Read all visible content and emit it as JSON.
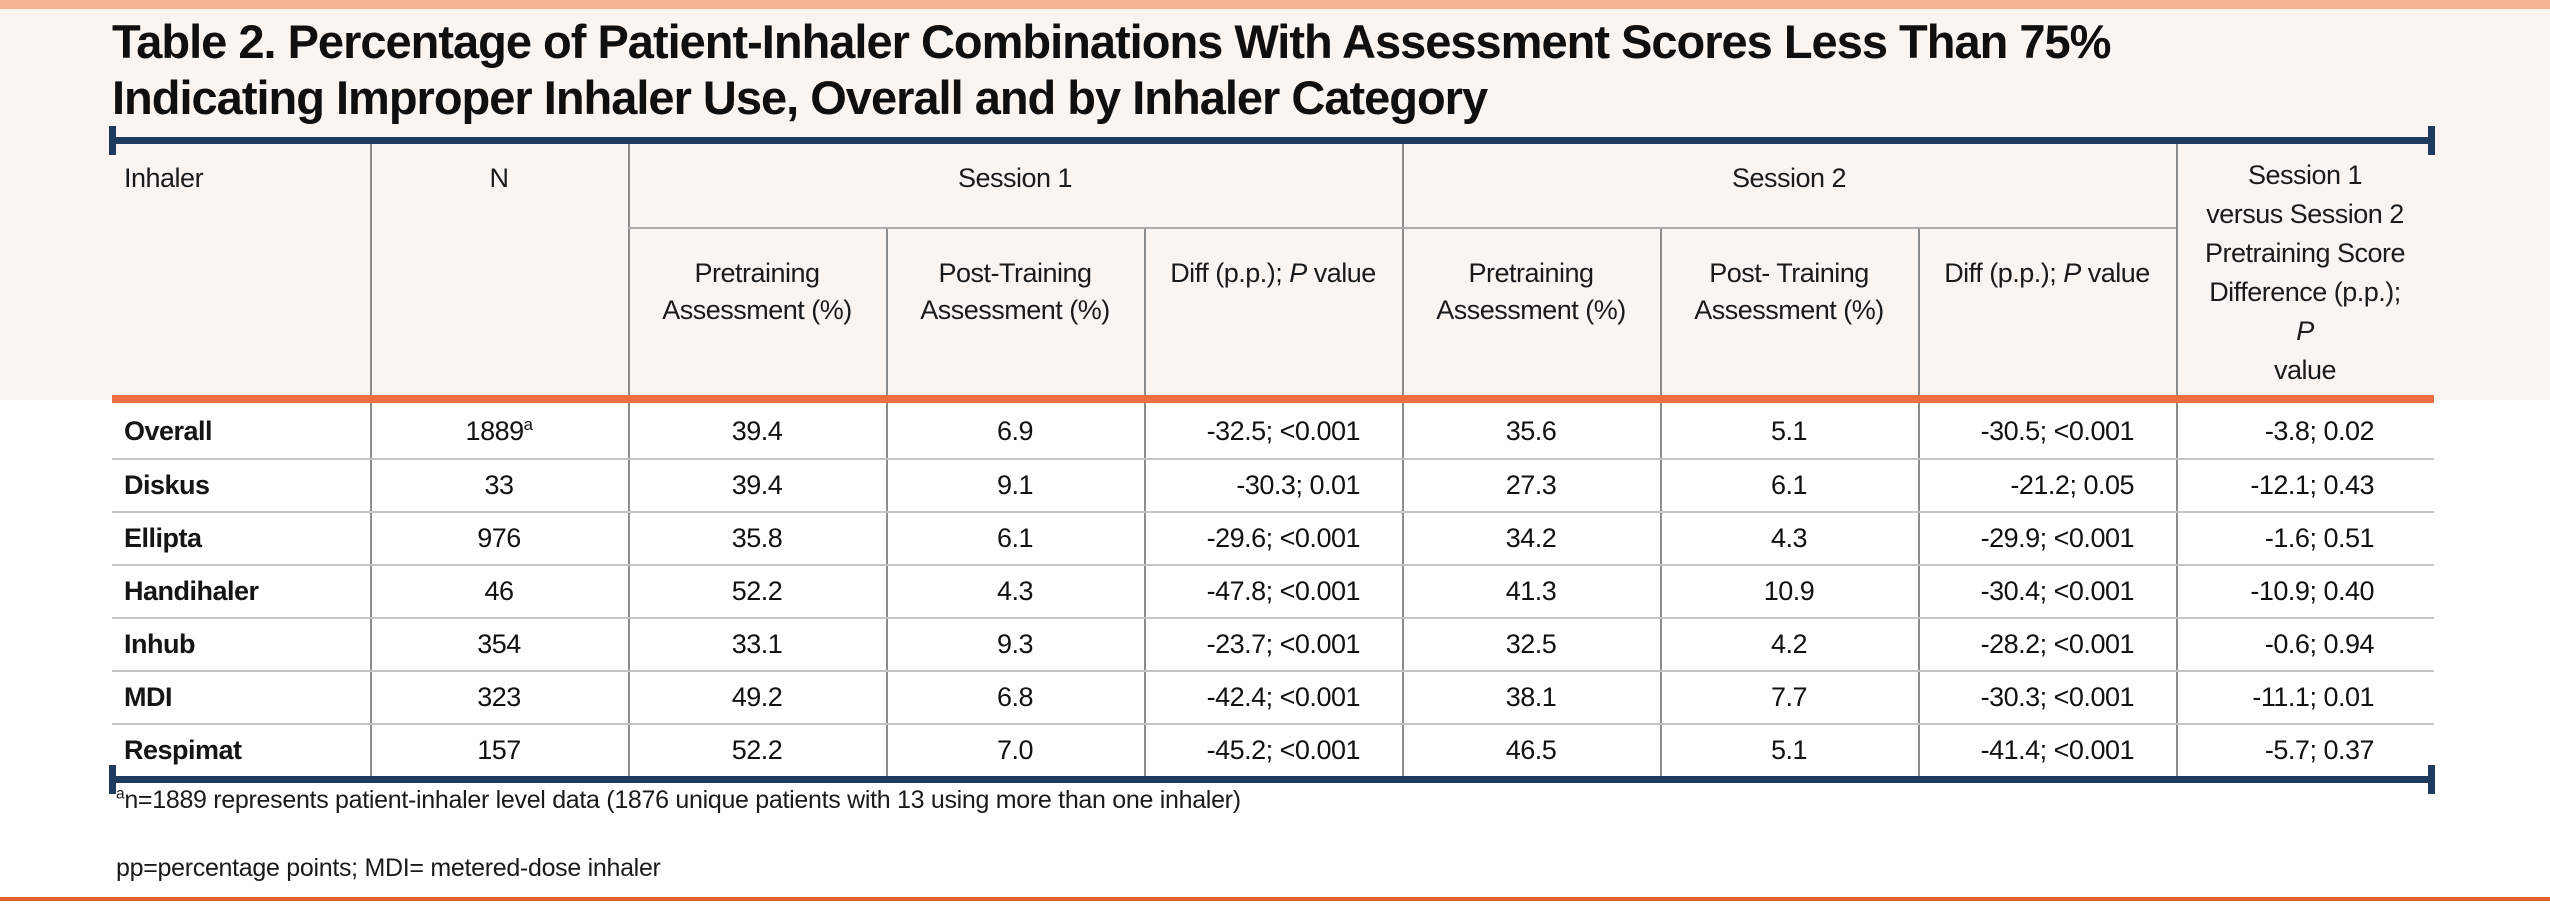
{
  "page": {
    "accent_navy": "#1E3A5F",
    "accent_orange": "#ED6F42",
    "accent_salmon": "#F6B392",
    "accent_orange_dark": "#E2602C"
  },
  "title": {
    "line1": "Table 2. Percentage of Patient-Inhaler Combinations With Assessment Scores Less Than 75%",
    "line2": "Indicating Improper Inhaler Use, Overall and by Inhaler Category"
  },
  "table": {
    "headers": {
      "inhaler": "Inhaler",
      "n": "N",
      "session1": "Session 1",
      "session2": "Session 2",
      "s1_pretraining": "Pretraining Assessment (%)",
      "s1_posttraining": "Post-Training Assessment (%)",
      "s2_pretraining": "Pretraining Assessment (%)",
      "s2_posttraining": "Post- Training Assessment (%)",
      "diff_prefix": "Diff (p.p.); ",
      "p_label": "P",
      "value_suffix": " value",
      "s1_vs_s2_lines": [
        "Session 1",
        "versus Session 2",
        "Pretraining Score",
        "Difference (p.p.);"
      ]
    },
    "rows": [
      {
        "inhaler": "Overall",
        "n": "1889",
        "n_sup": "a",
        "s1_pre": "39.4",
        "s1_post": "6.9",
        "s1_diff": "-32.5; <0.001",
        "s2_pre": "35.6",
        "s2_post": "5.1",
        "s2_diff": "-30.5; <0.001",
        "s1_vs_s2": "-3.8; 0.02"
      },
      {
        "inhaler": "Diskus",
        "n": "33",
        "s1_pre": "39.4",
        "s1_post": "9.1",
        "s1_diff": "-30.3; 0.01",
        "s2_pre": "27.3",
        "s2_post": "6.1",
        "s2_diff": "-21.2; 0.05",
        "s1_vs_s2": "-12.1; 0.43"
      },
      {
        "inhaler": "Ellipta",
        "n": "976",
        "s1_pre": "35.8",
        "s1_post": "6.1",
        "s1_diff": "-29.6; <0.001",
        "s2_pre": "34.2",
        "s2_post": "4.3",
        "s2_diff": "-29.9; <0.001",
        "s1_vs_s2": "-1.6; 0.51"
      },
      {
        "inhaler": "Handihaler",
        "n": "46",
        "s1_pre": "52.2",
        "s1_post": "4.3",
        "s1_diff": "-47.8; <0.001",
        "s2_pre": "41.3",
        "s2_post": "10.9",
        "s2_diff": "-30.4; <0.001",
        "s1_vs_s2": "-10.9; 0.40"
      },
      {
        "inhaler": "Inhub",
        "n": "354",
        "s1_pre": "33.1",
        "s1_post": "9.3",
        "s1_diff": "-23.7; <0.001",
        "s2_pre": "32.5",
        "s2_post": "4.2",
        "s2_diff": "-28.2; <0.001",
        "s1_vs_s2": "-0.6; 0.94"
      },
      {
        "inhaler": "MDI",
        "n": "323",
        "s1_pre": "49.2",
        "s1_post": "6.8",
        "s1_diff": "-42.4; <0.001",
        "s2_pre": "38.1",
        "s2_post": "7.7",
        "s2_diff": "-30.3; <0.001",
        "s1_vs_s2": "-11.1; 0.01"
      },
      {
        "inhaler": "Respimat",
        "n": "157",
        "s1_pre": "52.2",
        "s1_post": "7.0",
        "s1_diff": "-45.2; <0.001",
        "s2_pre": "46.5",
        "s2_post": "5.1",
        "s2_diff": "-41.4; <0.001",
        "s1_vs_s2": "-5.7; 0.37"
      }
    ]
  },
  "footnotes": {
    "a_sup": "a",
    "a_text": "n=1889 represents patient-inhaler level data (1876 unique patients with 13 using more than one inhaler)",
    "abbrev": "pp=percentage points; MDI= metered-dose inhaler"
  }
}
